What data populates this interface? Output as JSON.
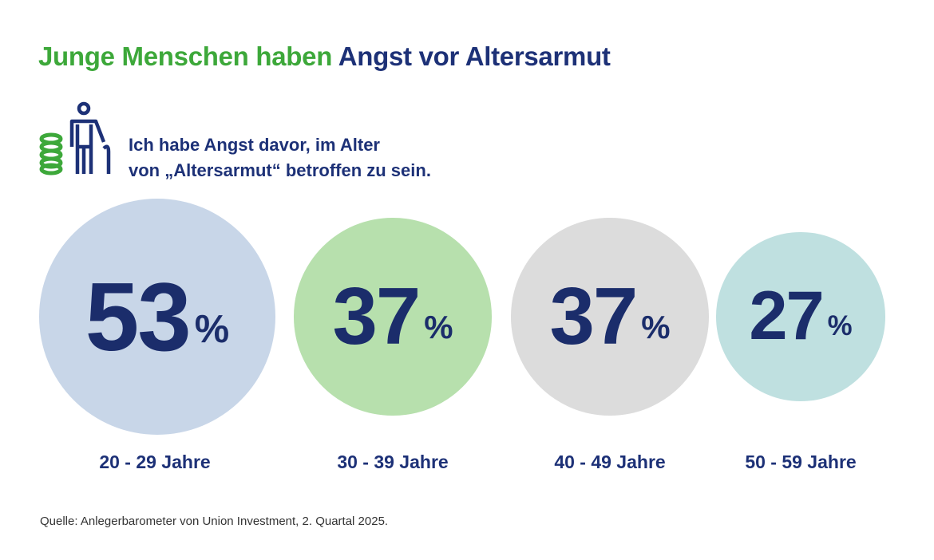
{
  "title": {
    "part_green": "Junge Menschen haben",
    "part_blue": "Angst vor Altersarmut"
  },
  "question": {
    "line1": "Ich habe Angst davor, im Alter",
    "line2": "von „Altersarmut“ betroffen zu sein."
  },
  "icon": "elderly-person-with-coins-icon",
  "colors": {
    "green": "#3da83a",
    "navy": "#1d3177"
  },
  "chart_data": {
    "type": "bubble",
    "categories": [
      "20 - 29 Jahre",
      "30 - 39 Jahre",
      "40 - 49 Jahre",
      "50 - 59 Jahre"
    ],
    "values": [
      53,
      37,
      37,
      27
    ],
    "value_labels": [
      "53",
      "37",
      "37",
      "27"
    ],
    "unit": "%",
    "colors": [
      "#c8d6e8",
      "#b7e0ad",
      "#dcdcdc",
      "#bfe0e0"
    ]
  },
  "source": "Quelle: Anlegerbarometer von Union Investment, 2. Quartal 2025."
}
